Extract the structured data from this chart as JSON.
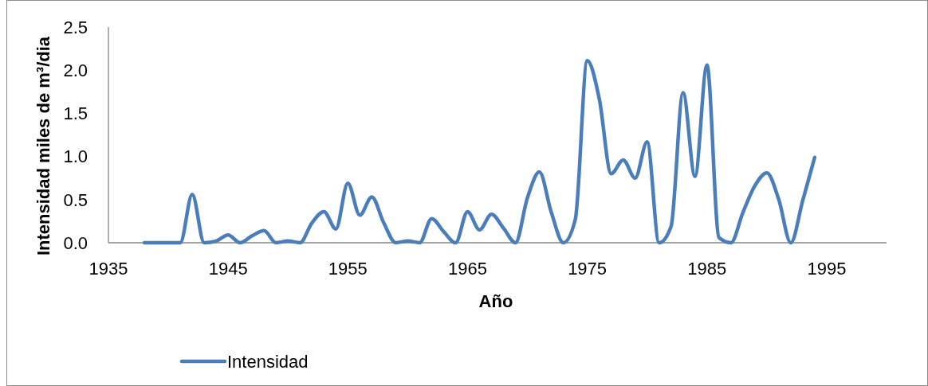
{
  "chart_data": {
    "type": "line",
    "xlabel": "Año",
    "ylabel": "Intensidad miles de m³/dia",
    "x": [
      1938,
      1939,
      1940,
      1941,
      1942,
      1943,
      1944,
      1945,
      1946,
      1947,
      1948,
      1949,
      1950,
      1951,
      1952,
      1953,
      1954,
      1955,
      1956,
      1957,
      1958,
      1959,
      1960,
      1961,
      1962,
      1963,
      1964,
      1965,
      1966,
      1967,
      1968,
      1969,
      1970,
      1971,
      1972,
      1973,
      1974,
      1975,
      1976,
      1977,
      1978,
      1979,
      1980,
      1981,
      1982,
      1983,
      1984,
      1985,
      1986,
      1987,
      1988,
      1989,
      1990,
      1991,
      1992,
      1993,
      1994
    ],
    "series": [
      {
        "name": "Intensidad",
        "color": "#4a7ebb",
        "values": [
          0,
          0,
          0,
          0,
          0.56,
          0,
          0.02,
          0.09,
          0,
          0.08,
          0.14,
          0,
          0.02,
          0,
          0.23,
          0.36,
          0.16,
          0.69,
          0.32,
          0.53,
          0.23,
          0,
          0.02,
          0,
          0.28,
          0.13,
          0,
          0.36,
          0.15,
          0.33,
          0.17,
          0,
          0.52,
          0.82,
          0.35,
          0,
          0.27,
          2.11,
          1.67,
          0.8,
          0.96,
          0.75,
          1.17,
          0,
          0.19,
          1.74,
          0.77,
          2.06,
          0.06,
          0,
          0.35,
          0.66,
          0.81,
          0.5,
          0,
          0.49,
          0.99
        ]
      }
    ],
    "xlim": [
      1935,
      2000
    ],
    "xticks": [
      1935,
      1945,
      1955,
      1965,
      1975,
      1985,
      1995
    ],
    "ylim": [
      0,
      2.5
    ],
    "yticks": [
      {
        "value": 0,
        "label": "0.0"
      },
      0.5,
      {
        "value": 1,
        "label": "1.0"
      },
      1.5,
      {
        "value": 2,
        "label": "2.0"
      },
      2.5
    ],
    "legend": "bottom",
    "line_style": "solid"
  }
}
